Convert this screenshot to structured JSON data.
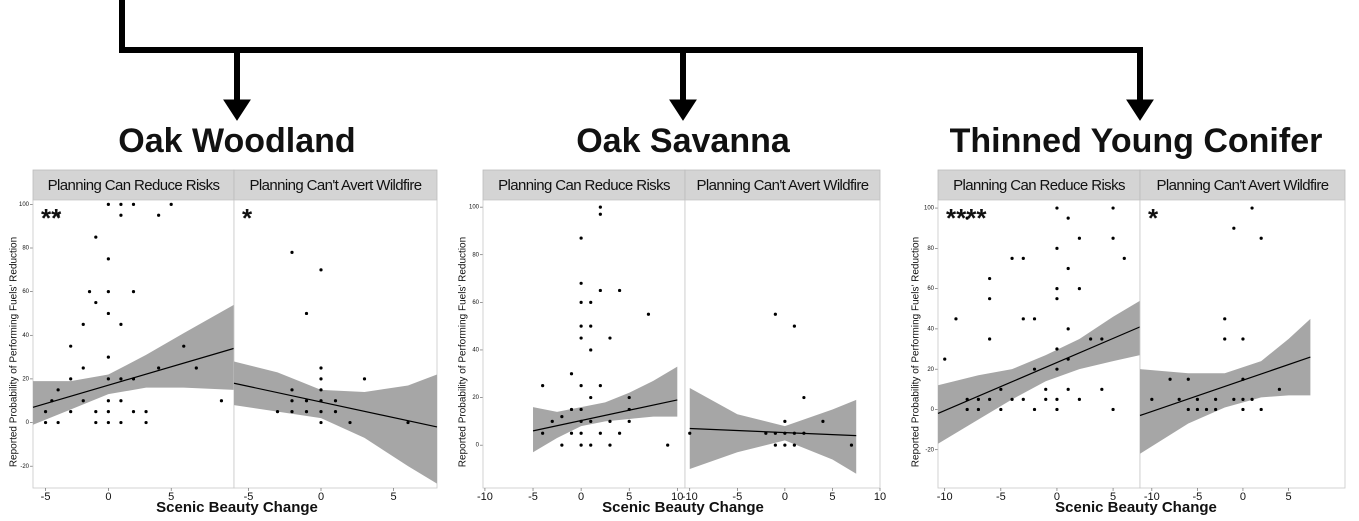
{
  "chart_data": [
    {
      "type": "scatter",
      "title": "Oak Woodland",
      "xlabel": "Scenic Beauty Change",
      "ylabel": "Reported Probability of Performing Fuels' Reduction",
      "ylim": [
        -30,
        102
      ],
      "yticks": [
        -20,
        0,
        20,
        40,
        60,
        80,
        100
      ],
      "point_color": "#000000",
      "band_color": "#a6a6a6",
      "panels": [
        {
          "strip": "Planning Can Reduce Risks",
          "annotation": "**",
          "xlim": [
            -6,
            10
          ],
          "xticks": [
            -5,
            0,
            5
          ],
          "x": [
            -5,
            -5,
            -4.5,
            -4,
            -4,
            -4,
            -3,
            -3,
            -3,
            -2,
            -2,
            -2,
            -1.5,
            -1,
            -1,
            -1,
            -1,
            0,
            0,
            0,
            0,
            0,
            0,
            0,
            0,
            0,
            1,
            1,
            1,
            1,
            1,
            1,
            2,
            2,
            2,
            2,
            3,
            3,
            4,
            4,
            5,
            6,
            7,
            9
          ],
          "y": [
            5,
            0,
            10,
            15,
            95,
            0,
            20,
            5,
            35,
            10,
            25,
            45,
            60,
            0,
            55,
            5,
            85,
            0,
            5,
            10,
            20,
            30,
            50,
            60,
            75,
            100,
            0,
            10,
            20,
            45,
            95,
            100,
            5,
            20,
            60,
            100,
            0,
            5,
            25,
            95,
            100,
            35,
            25,
            10
          ],
          "fit_x": [
            -6,
            10
          ],
          "fit_y": [
            7,
            34
          ],
          "band_x": [
            -6,
            -3,
            0,
            3,
            6,
            10
          ],
          "band_lower": [
            -1,
            6,
            13,
            16,
            16,
            15
          ],
          "band_upper": [
            19,
            19,
            22,
            31,
            41,
            54
          ]
        },
        {
          "strip": "Planning Can't Avert Wildfire",
          "annotation": "*",
          "xlim": [
            -6,
            8
          ],
          "xticks": [
            -5,
            0,
            5
          ],
          "x": [
            -2,
            -1,
            0,
            0,
            0,
            -2,
            -2,
            -1,
            -1,
            0,
            0,
            0,
            1,
            1,
            2,
            3,
            6,
            -3,
            -2,
            0
          ],
          "y": [
            78,
            50,
            70,
            25,
            20,
            10,
            5,
            10,
            5,
            5,
            10,
            0,
            5,
            10,
            0,
            20,
            0,
            5,
            15,
            15
          ],
          "fit_x": [
            -6,
            8
          ],
          "fit_y": [
            18,
            -2
          ],
          "band_x": [
            -6,
            -3,
            0,
            3,
            6,
            8
          ],
          "band_lower": [
            8,
            5,
            2,
            -7,
            -20,
            -28
          ],
          "band_upper": [
            28,
            23,
            15,
            14,
            17,
            22
          ]
        }
      ]
    },
    {
      "type": "scatter",
      "title": "Oak Savanna",
      "xlabel": "Scenic Beauty Change",
      "ylabel": "Reported Probability of Performing Fuels' Reduction",
      "ylim": [
        -18,
        103
      ],
      "yticks": [
        0,
        20,
        40,
        60,
        80,
        100
      ],
      "point_color": "#000000",
      "band_color": "#a6a6a6",
      "panels": [
        {
          "strip": "Planning Can Reduce Risks",
          "xlim": [
            -10.2,
            10.8
          ],
          "xticks": [
            -10,
            -5,
            0,
            5,
            10
          ],
          "x": [
            -4,
            -4,
            -3,
            -2,
            -2,
            -1,
            -1,
            0,
            0,
            0,
            0,
            0,
            0,
            0,
            0,
            0,
            0,
            1,
            1,
            1,
            1,
            1,
            2,
            2,
            2,
            2,
            2,
            3,
            3,
            3,
            4,
            4,
            5,
            5,
            5,
            7,
            9,
            -1,
            1
          ],
          "y": [
            25,
            5,
            10,
            12,
            0,
            15,
            5,
            87,
            68,
            60,
            50,
            45,
            25,
            15,
            10,
            5,
            0,
            60,
            40,
            20,
            10,
            0,
            100,
            97,
            65,
            25,
            5,
            45,
            10,
            0,
            65,
            5,
            20,
            15,
            10,
            55,
            0,
            30,
            50
          ],
          "fit_x": [
            -5,
            10
          ],
          "fit_y": [
            6,
            19
          ],
          "band_x": [
            -5,
            -2.5,
            0,
            2.5,
            5,
            7.5,
            10
          ],
          "band_lower": [
            -3,
            3,
            8,
            10,
            11,
            12,
            12
          ],
          "band_upper": [
            16,
            14,
            16,
            18,
            22,
            27,
            33
          ]
        },
        {
          "strip": "Planning Can't Avert Wildfire",
          "xlim": [
            -10.5,
            10
          ],
          "xticks": [
            -10,
            -5,
            0,
            5,
            10
          ],
          "x": [
            -10,
            -1,
            1,
            2,
            0,
            0,
            0,
            1,
            -1,
            -2,
            1,
            4,
            7,
            2,
            -1
          ],
          "y": [
            5,
            55,
            50,
            20,
            10,
            5,
            0,
            5,
            5,
            5,
            0,
            10,
            0,
            5,
            0
          ],
          "fit_x": [
            -10,
            7.5
          ],
          "fit_y": [
            7,
            4
          ],
          "band_x": [
            -10,
            -5,
            0,
            5,
            7.5
          ],
          "band_lower": [
            -10,
            -3,
            2,
            -6,
            -12
          ],
          "band_upper": [
            24,
            13,
            8,
            15,
            19
          ]
        }
      ]
    },
    {
      "type": "scatter",
      "title": "Thinned Young Conifer",
      "xlabel": "Scenic Beauty Change",
      "ylabel": "Reported Probability of Performing Fuels' Reduction",
      "ylim": [
        -39,
        104
      ],
      "yticks": [
        -20,
        0,
        20,
        40,
        60,
        80,
        100
      ],
      "point_color": "#000000",
      "band_color": "#a6a6a6",
      "panels": [
        {
          "strip": "Planning Can Reduce Risks",
          "annotation": "****",
          "xlim": [
            -10.6,
            7.4
          ],
          "xticks": [
            -10,
            -5,
            0,
            5
          ],
          "x": [
            -10,
            -9,
            -8,
            -8,
            -7,
            -7,
            -6,
            -6,
            -6,
            -6,
            -5,
            -5,
            -4,
            -3,
            -3,
            -3,
            -2,
            -2,
            -2,
            -1,
            -1,
            0,
            0,
            0,
            0,
            0,
            0,
            0,
            0,
            1,
            1,
            1,
            1,
            1,
            2,
            2,
            2,
            3,
            4,
            5,
            5,
            6,
            5,
            4,
            -4,
            -8
          ],
          "y": [
            25,
            45,
            95,
            5,
            5,
            0,
            55,
            65,
            35,
            5,
            0,
            10,
            5,
            75,
            45,
            5,
            20,
            45,
            0,
            10,
            5,
            100,
            80,
            60,
            55,
            30,
            20,
            5,
            0,
            95,
            70,
            40,
            25,
            10,
            85,
            60,
            5,
            35,
            35,
            100,
            85,
            75,
            0,
            10,
            75,
            0
          ],
          "fit_x": [
            -10.6,
            7.4
          ],
          "fit_y": [
            -2,
            41
          ],
          "band_x": [
            -10.6,
            -7,
            -4,
            -1,
            2,
            5,
            7.4
          ],
          "band_lower": [
            -17,
            -5,
            5,
            14,
            20,
            24,
            27
          ],
          "band_upper": [
            12,
            17,
            20,
            27,
            35,
            46,
            54
          ]
        },
        {
          "strip": "Planning Can't Avert Wildfire",
          "annotation": "*",
          "xlim": [
            -11.3,
            11.2
          ],
          "xticks": [
            -10,
            -5,
            0,
            5
          ],
          "x": [
            -10,
            -8,
            -7,
            -6,
            -6,
            -5,
            -4,
            -3,
            -2,
            -2,
            -1,
            -1,
            0,
            0,
            0,
            0,
            1,
            1,
            2,
            2,
            4,
            -5,
            -3
          ],
          "y": [
            5,
            15,
            5,
            15,
            0,
            5,
            0,
            5,
            45,
            35,
            90,
            5,
            35,
            15,
            5,
            0,
            100,
            5,
            85,
            0,
            10,
            0,
            0
          ],
          "fit_x": [
            -11.3,
            7.4
          ],
          "fit_y": [
            -3,
            26
          ],
          "band_x": [
            -11.3,
            -6,
            -2,
            2,
            5,
            7.4
          ],
          "band_lower": [
            -22,
            -7,
            1,
            6,
            7,
            7
          ],
          "band_upper": [
            20,
            18,
            18,
            24,
            35,
            45
          ]
        }
      ]
    }
  ]
}
